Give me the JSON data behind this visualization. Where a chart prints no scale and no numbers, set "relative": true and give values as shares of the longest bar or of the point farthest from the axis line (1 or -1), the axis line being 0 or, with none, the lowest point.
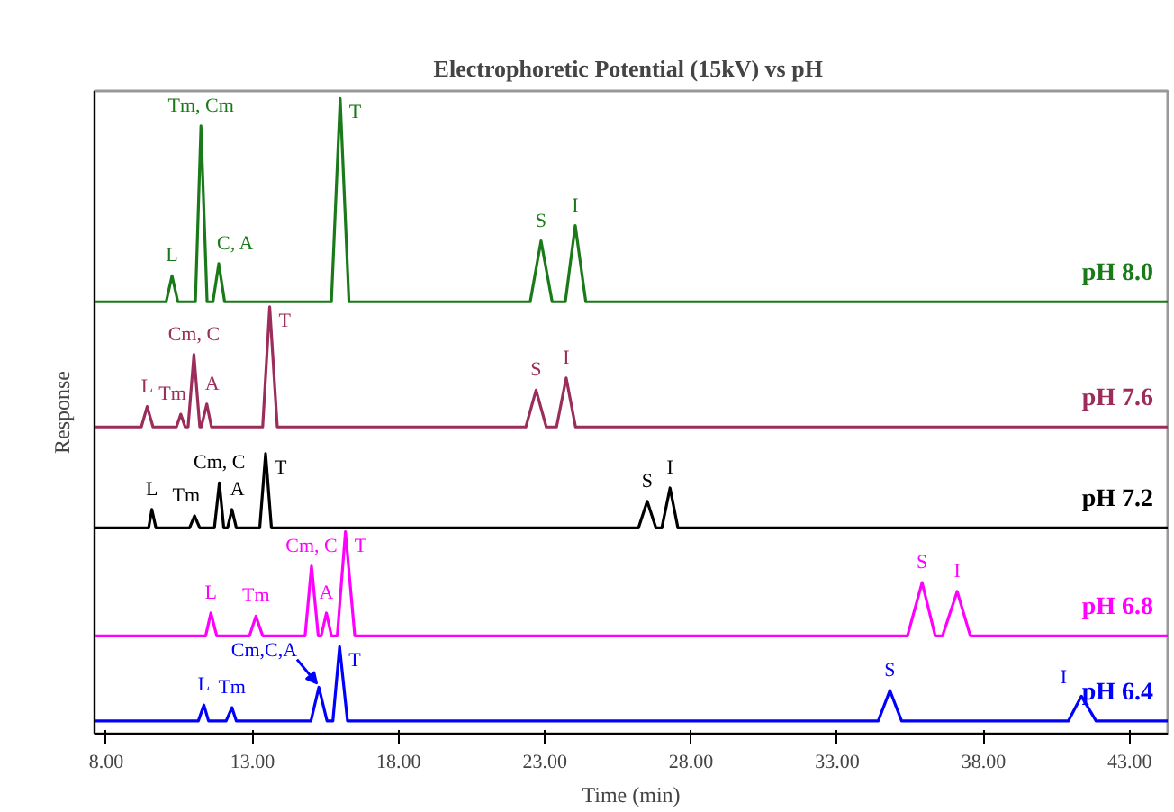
{
  "chart_data": {
    "type": "line",
    "title": "Electrophoretic  Potential (15kV) vs pH",
    "xlabel": "Time (min)",
    "ylabel": "Response",
    "relative": true,
    "tick_labels": "x",
    "grid": false,
    "legend": false,
    "marker": "none",
    "line_style": "solid",
    "xlim": [
      7.6,
      44.3
    ],
    "xticks": [
      {
        "value": 8,
        "label": "8.00"
      },
      {
        "value": 13,
        "label": "13.00"
      },
      {
        "value": 18,
        "label": "18.00"
      },
      {
        "value": 23,
        "label": "23.00"
      },
      {
        "value": 28,
        "label": "28.00"
      },
      {
        "value": 33,
        "label": "33.00"
      },
      {
        "value": 38,
        "label": "38.00"
      },
      {
        "value": 43,
        "label": "43.00"
      }
    ],
    "series": [
      {
        "name": "pH 8.0",
        "color": "#1a7a1a",
        "x": [
          7.6,
          10.05,
          10.25,
          10.45,
          11.05,
          11.24,
          11.45,
          11.65,
          11.85,
          12.05,
          15.7,
          16.0,
          16.3,
          22.5,
          22.87,
          23.25,
          23.7,
          24.04,
          24.4,
          44.3
        ],
        "values": [
          0.68,
          0.68,
          0.721,
          0.68,
          0.68,
          0.957,
          0.68,
          0.68,
          0.74,
          0.68,
          0.68,
          1.0,
          0.68,
          0.68,
          0.776,
          0.68,
          0.68,
          0.8,
          0.68,
          0.68
        ]
      },
      {
        "name": "pH 7.6",
        "color": "#9b2d5b",
        "x": [
          7.6,
          9.2,
          9.4,
          9.6,
          10.4,
          10.55,
          10.7,
          10.8,
          11.0,
          11.2,
          11.25,
          11.44,
          11.6,
          13.35,
          13.59,
          13.85,
          22.35,
          22.7,
          23.05,
          23.4,
          23.73,
          24.05,
          44.3
        ],
        "values": [
          0.483,
          0.483,
          0.515,
          0.483,
          0.483,
          0.503,
          0.483,
          0.483,
          0.597,
          0.483,
          0.483,
          0.519,
          0.483,
          0.483,
          0.672,
          0.483,
          0.483,
          0.541,
          0.483,
          0.483,
          0.56,
          0.483,
          0.483
        ]
      },
      {
        "name": "pH 7.2",
        "color": "#000000",
        "x": [
          7.6,
          9.45,
          9.56,
          9.7,
          10.85,
          11.02,
          11.2,
          11.7,
          11.87,
          12.02,
          12.15,
          12.3,
          12.45,
          13.25,
          13.45,
          13.65,
          26.2,
          26.5,
          26.8,
          27.0,
          27.28,
          27.55,
          44.3
        ],
        "values": [
          0.324,
          0.324,
          0.353,
          0.324,
          0.324,
          0.343,
          0.324,
          0.324,
          0.395,
          0.324,
          0.324,
          0.353,
          0.324,
          0.324,
          0.441,
          0.324,
          0.324,
          0.366,
          0.324,
          0.324,
          0.387,
          0.324,
          0.324
        ]
      },
      {
        "name": "pH 6.8",
        "color": "#ff00ff",
        "x": [
          7.6,
          11.4,
          11.58,
          11.78,
          12.9,
          13.12,
          13.35,
          14.8,
          15.02,
          15.25,
          15.35,
          15.53,
          15.7,
          15.9,
          16.18,
          16.5,
          35.4,
          35.9,
          36.35,
          36.6,
          37.1,
          37.55,
          44.3
        ],
        "values": [
          0.154,
          0.154,
          0.19,
          0.154,
          0.154,
          0.185,
          0.154,
          0.154,
          0.264,
          0.154,
          0.154,
          0.19,
          0.154,
          0.154,
          0.318,
          0.154,
          0.154,
          0.238,
          0.154,
          0.154,
          0.224,
          0.154,
          0.154
        ]
      },
      {
        "name": "pH 6.4",
        "color": "#0000ff",
        "x": [
          7.6,
          11.15,
          11.34,
          11.5,
          12.1,
          12.3,
          12.45,
          15.0,
          15.27,
          15.55,
          15.75,
          15.98,
          16.25,
          34.4,
          34.8,
          35.2,
          40.9,
          41.35,
          41.85,
          44.3
        ],
        "values": [
          0.02,
          0.02,
          0.045,
          0.02,
          0.02,
          0.041,
          0.02,
          0.02,
          0.073,
          0.02,
          0.02,
          0.137,
          0.02,
          0.02,
          0.068,
          0.02,
          0.02,
          0.059,
          0.02,
          0.02
        ]
      }
    ],
    "annotations": [
      {
        "text": "L",
        "x": 10.25,
        "y": 0.721
      },
      {
        "text": "Tm, Cm",
        "x": 11.24,
        "y": 0.957
      },
      {
        "text": "C, A",
        "x": 11.85,
        "y": 0.74
      },
      {
        "text": "T",
        "x": 16.0,
        "y": 1.0
      },
      {
        "text": "S",
        "x": 22.87,
        "y": 0.776
      },
      {
        "text": "I",
        "x": 24.04,
        "y": 0.8
      },
      {
        "text": "L",
        "x": 9.4,
        "y": 0.515
      },
      {
        "text": "Tm",
        "x": 10.55,
        "y": 0.503
      },
      {
        "text": "Cm, C",
        "x": 11.0,
        "y": 0.597
      },
      {
        "text": "A",
        "x": 11.44,
        "y": 0.519
      },
      {
        "text": "T",
        "x": 13.59,
        "y": 0.672
      },
      {
        "text": "S",
        "x": 22.7,
        "y": 0.541
      },
      {
        "text": "I",
        "x": 23.73,
        "y": 0.56
      },
      {
        "text": "L",
        "x": 9.56,
        "y": 0.353
      },
      {
        "text": "Tm",
        "x": 11.02,
        "y": 0.343
      },
      {
        "text": "Cm, C",
        "x": 11.87,
        "y": 0.395
      },
      {
        "text": "A",
        "x": 12.3,
        "y": 0.353
      },
      {
        "text": "T",
        "x": 13.45,
        "y": 0.441
      },
      {
        "text": "S",
        "x": 26.5,
        "y": 0.366
      },
      {
        "text": "I",
        "x": 27.28,
        "y": 0.387
      },
      {
        "text": "L",
        "x": 11.58,
        "y": 0.19
      },
      {
        "text": "Tm",
        "x": 13.12,
        "y": 0.185
      },
      {
        "text": "Cm, C",
        "x": 15.02,
        "y": 0.264
      },
      {
        "text": "A",
        "x": 15.53,
        "y": 0.19
      },
      {
        "text": "T",
        "x": 16.18,
        "y": 0.318
      },
      {
        "text": "S",
        "x": 35.9,
        "y": 0.238
      },
      {
        "text": "I",
        "x": 37.1,
        "y": 0.224
      },
      {
        "text": "L",
        "x": 11.34,
        "y": 0.045
      },
      {
        "text": "Tm",
        "x": 12.3,
        "y": 0.041
      },
      {
        "text": "Cm,C,A",
        "x": 15.27,
        "y": 0.073
      },
      {
        "text": "T",
        "x": 15.98,
        "y": 0.137
      },
      {
        "text": "S",
        "x": 34.8,
        "y": 0.068
      },
      {
        "text": "I",
        "x": 41.35,
        "y": 0.059
      }
    ]
  }
}
